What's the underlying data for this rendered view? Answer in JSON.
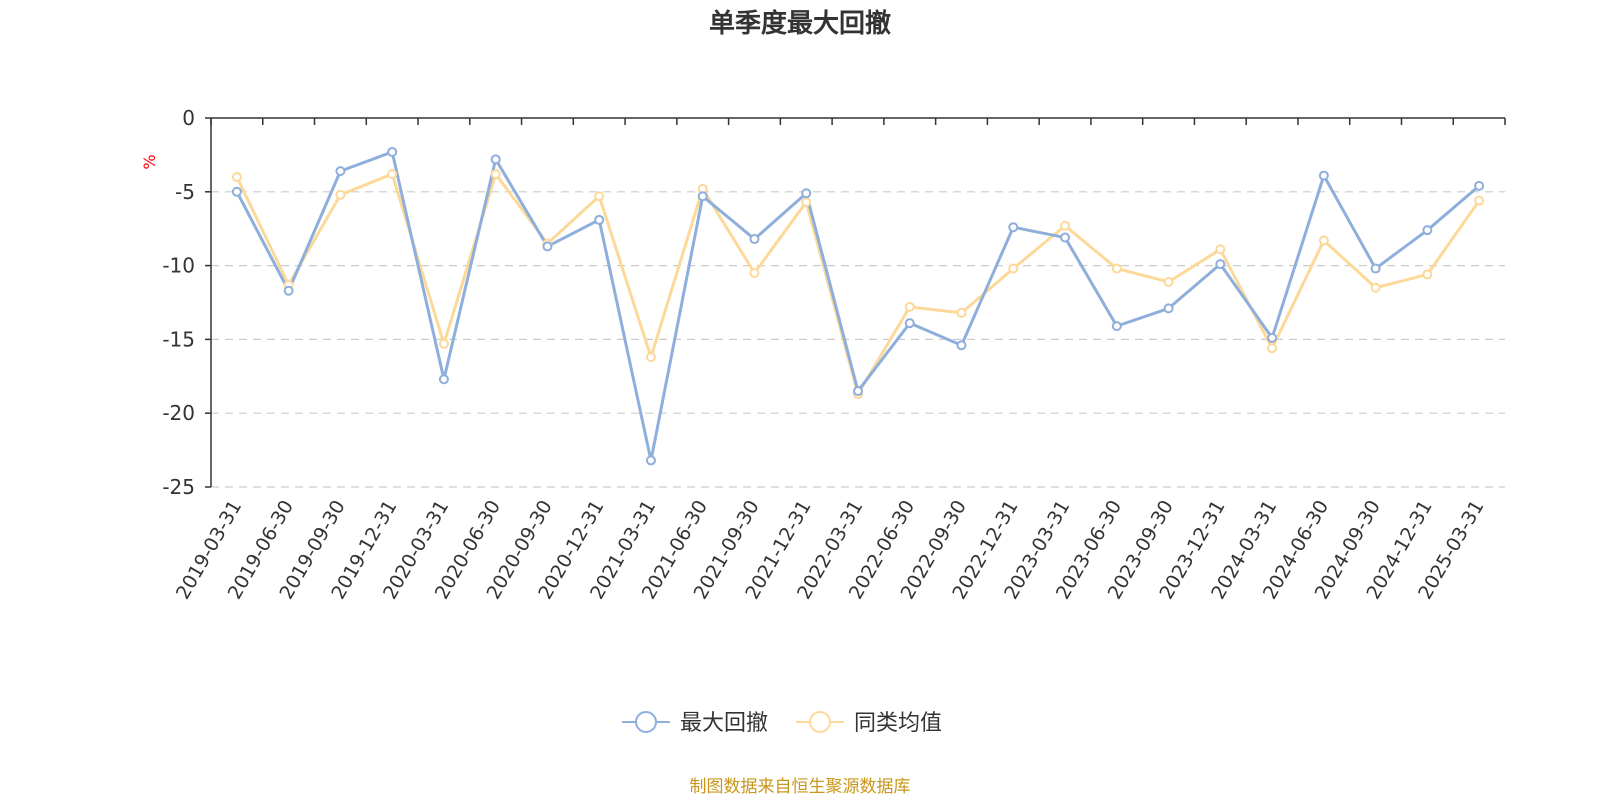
{
  "chart_data": {
    "type": "line",
    "title": "单季度最大回撤",
    "y_unit": "%",
    "ylim": [
      -25,
      0
    ],
    "y_ticks": [
      0,
      -5,
      -10,
      -15,
      -20,
      -25
    ],
    "grid": "horizontal-dashed",
    "legend_position": "bottom-center",
    "categories": [
      "2019-03-31",
      "2019-06-30",
      "2019-09-30",
      "2019-12-31",
      "2020-03-31",
      "2020-06-30",
      "2020-09-30",
      "2020-12-31",
      "2021-03-31",
      "2021-06-30",
      "2021-09-30",
      "2021-12-31",
      "2022-03-31",
      "2022-06-30",
      "2022-09-30",
      "2022-12-31",
      "2023-03-31",
      "2023-06-30",
      "2023-09-30",
      "2023-12-31",
      "2024-03-31",
      "2024-06-30",
      "2024-09-30",
      "2024-12-31",
      "2025-03-31"
    ],
    "series": [
      {
        "name": "最大回撤",
        "color": "#8eaedc",
        "values": [
          -5.0,
          -11.7,
          -3.6,
          -2.3,
          -17.7,
          -2.8,
          -8.7,
          -6.9,
          -23.2,
          -5.3,
          -8.2,
          -5.1,
          -18.5,
          -13.9,
          -15.4,
          -7.4,
          -8.1,
          -14.1,
          -12.9,
          -9.9,
          -14.9,
          -3.9,
          -10.2,
          -7.6,
          -4.6
        ]
      },
      {
        "name": "同类均值",
        "color": "#fcd999",
        "values": [
          -4.0,
          -11.3,
          -5.2,
          -3.8,
          -15.3,
          -3.8,
          -8.5,
          -5.3,
          -16.2,
          -4.8,
          -10.5,
          -5.7,
          -18.7,
          -12.8,
          -13.2,
          -10.2,
          -7.3,
          -10.2,
          -11.1,
          -8.9,
          -15.6,
          -8.3,
          -11.5,
          -10.6,
          -5.6
        ]
      }
    ]
  },
  "source_note": "制图数据来自恒生聚源数据库",
  "colors": {
    "axis": "#333333",
    "grid": "#cccccc",
    "source": "#c9961a",
    "unit": "#ff0000"
  }
}
